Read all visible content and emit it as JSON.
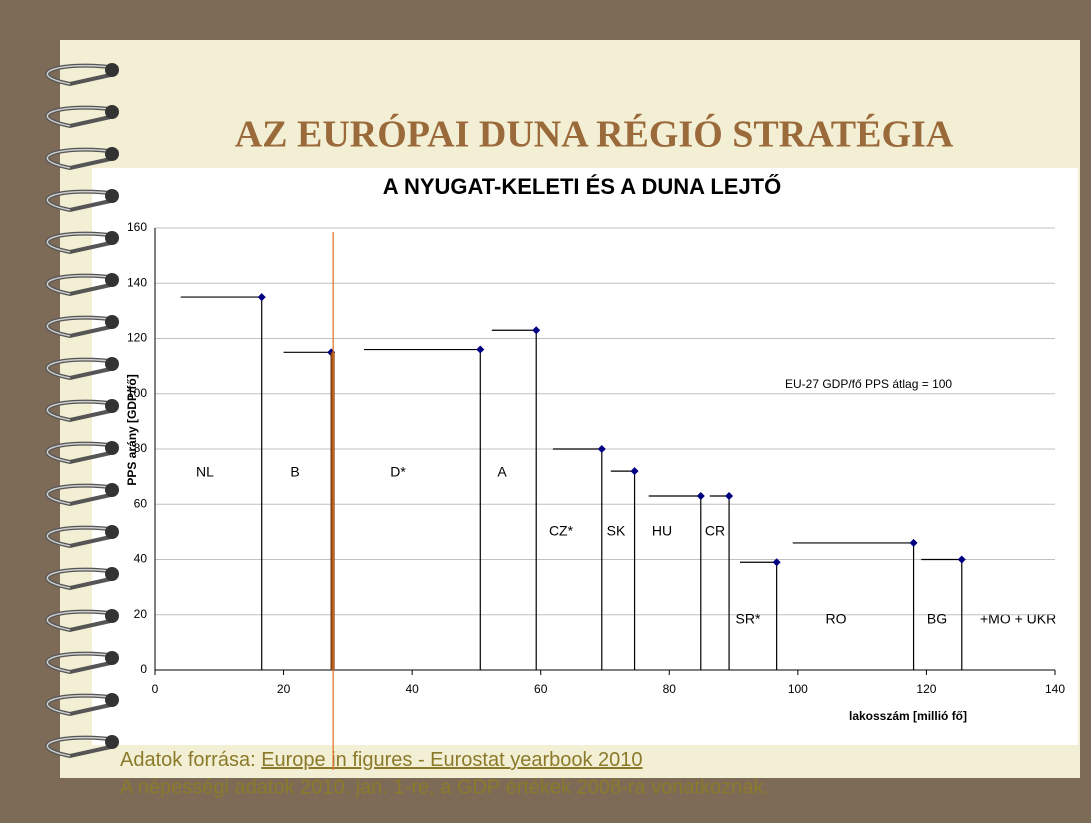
{
  "slide_title": "AZ EURÓPAI DUNA RÉGIÓ STRATÉGIA",
  "chart_data": {
    "type": "step",
    "title": "A NYUGAT-KELETI ÉS A DUNA LEJTŐ",
    "x_label": "lakosszám [millió fő]",
    "y_label": "PPS arány [GDP/fő]",
    "annotation": "EU-27 GDP/fő PPS átlag = 100",
    "extra_label": "+MO + UKR",
    "categories": [
      "NL",
      "B",
      "D*",
      "A",
      "CZ*",
      "SK",
      "HU",
      "CR",
      "SR*",
      "RO",
      "BG"
    ],
    "x_start": [
      4,
      20,
      32.5,
      52.4,
      61.9,
      70.9,
      76.8,
      86.3,
      91,
      99.2,
      119.2
    ],
    "x": [
      16.6,
      27.4,
      50.6,
      59.3,
      69.5,
      74.6,
      84.9,
      89.3,
      96.7,
      118,
      125.5
    ],
    "values": [
      135,
      115,
      116,
      123,
      80,
      72,
      63,
      63,
      39,
      46,
      40
    ],
    "color": "#000080",
    "xlim": [
      0,
      140
    ],
    "xticks": [
      0,
      20,
      40,
      60,
      80,
      100,
      120,
      140
    ],
    "ylim": [
      0,
      160
    ],
    "yticks": [
      0,
      20,
      40,
      60,
      80,
      100,
      120,
      140,
      160
    ],
    "grid": true
  },
  "footer": {
    "source_prefix": "Adatok forrása: ",
    "source_link": "Europe in figures - Eurostat yearbook 2010",
    "note": "A népességi adatok 2010. jan. 1-re, a GDP értékek 2008-ra vonatkoznak."
  }
}
